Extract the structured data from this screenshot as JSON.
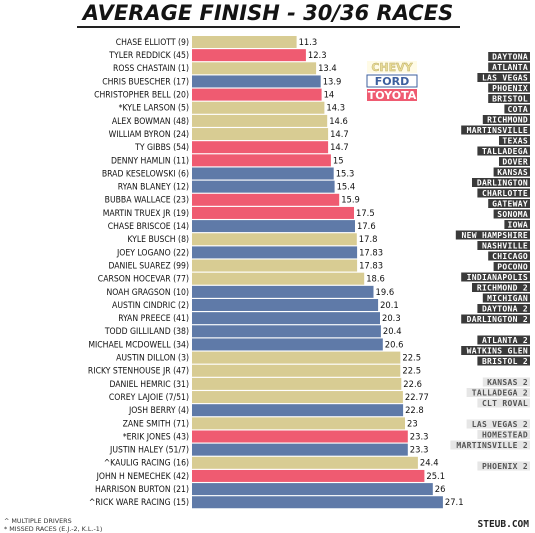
{
  "chart_data": {
    "type": "bar",
    "orientation": "horizontal",
    "title": "AVERAGE FINISH - 30/36 RACES",
    "xlim": [
      0,
      28
    ],
    "colors": {
      "Chevy": "#d8cc93",
      "Ford": "#5f7aa8",
      "Toyota": "#ef5b71"
    },
    "legend": [
      {
        "label": "CHEVY",
        "make": "Chevy"
      },
      {
        "label": "FORD",
        "make": "Ford"
      },
      {
        "label": "TOYOTA",
        "make": "Toyota"
      }
    ],
    "legend_position": "top-right",
    "bars": [
      {
        "driver": "CHASE ELLIOTT (9)",
        "value": 11.3,
        "label": "11.3",
        "make": "Chevy"
      },
      {
        "driver": "TYLER REDDICK (45)",
        "value": 12.3,
        "label": "12.3",
        "make": "Toyota"
      },
      {
        "driver": "ROSS CHASTAIN (1)",
        "value": 13.4,
        "label": "13.4",
        "make": "Chevy"
      },
      {
        "driver": "CHRIS BUESCHER (17)",
        "value": 13.9,
        "label": "13.9",
        "make": "Ford"
      },
      {
        "driver": "CHRISTOPHER BELL (20)",
        "value": 14,
        "label": "14",
        "make": "Toyota"
      },
      {
        "driver": "*KYLE LARSON (5)",
        "value": 14.3,
        "label": "14.3",
        "make": "Chevy"
      },
      {
        "driver": "ALEX BOWMAN (48)",
        "value": 14.6,
        "label": "14.6",
        "make": "Chevy"
      },
      {
        "driver": "WILLIAM BYRON (24)",
        "value": 14.7,
        "label": "14.7",
        "make": "Chevy"
      },
      {
        "driver": "TY GIBBS (54)",
        "value": 14.7,
        "label": "14.7",
        "make": "Toyota"
      },
      {
        "driver": "DENNY HAMLIN (11)",
        "value": 15,
        "label": "15",
        "make": "Toyota"
      },
      {
        "driver": "BRAD KESELOWSKI (6)",
        "value": 15.3,
        "label": "15.3",
        "make": "Ford"
      },
      {
        "driver": "RYAN BLANEY (12)",
        "value": 15.4,
        "label": "15.4",
        "make": "Ford"
      },
      {
        "driver": "BUBBA WALLACE (23)",
        "value": 15.9,
        "label": "15.9",
        "make": "Toyota"
      },
      {
        "driver": "MARTIN TRUEX JR (19)",
        "value": 17.5,
        "label": "17.5",
        "make": "Toyota"
      },
      {
        "driver": "CHASE BRISCOE (14)",
        "value": 17.6,
        "label": "17.6",
        "make": "Ford"
      },
      {
        "driver": "KYLE BUSCH (8)",
        "value": 17.8,
        "label": "17.8",
        "make": "Chevy"
      },
      {
        "driver": "JOEY LOGANO (22)",
        "value": 17.83,
        "label": "17.83",
        "make": "Ford"
      },
      {
        "driver": "DANIEL SUAREZ (99)",
        "value": 17.83,
        "label": "17.83",
        "make": "Chevy"
      },
      {
        "driver": "CARSON HOCEVAR (77)",
        "value": 18.6,
        "label": "18.6",
        "make": "Chevy"
      },
      {
        "driver": "NOAH GRAGSON (10)",
        "value": 19.6,
        "label": "19.6",
        "make": "Ford"
      },
      {
        "driver": "AUSTIN CINDRIC (2)",
        "value": 20.1,
        "label": "20.1",
        "make": "Ford"
      },
      {
        "driver": "RYAN PREECE (41)",
        "value": 20.3,
        "label": "20.3",
        "make": "Ford"
      },
      {
        "driver": "TODD GILLILAND (38)",
        "value": 20.4,
        "label": "20.4",
        "make": "Ford"
      },
      {
        "driver": "MICHAEL MCDOWELL (34)",
        "value": 20.6,
        "label": "20.6",
        "make": "Ford"
      },
      {
        "driver": "AUSTIN DILLON (3)",
        "value": 22.5,
        "label": "22.5",
        "make": "Chevy"
      },
      {
        "driver": "RICKY STENHOUSE JR (47)",
        "value": 22.5,
        "label": "22.5",
        "make": "Chevy"
      },
      {
        "driver": "DANIEL HEMRIC (31)",
        "value": 22.6,
        "label": "22.6",
        "make": "Chevy"
      },
      {
        "driver": "COREY LAJOIE (7/51)",
        "value": 22.77,
        "label": "22.77",
        "make": "Chevy"
      },
      {
        "driver": "JOSH BERRY (4)",
        "value": 22.8,
        "label": "22.8",
        "make": "Ford"
      },
      {
        "driver": "ZANE SMITH (71)",
        "value": 23,
        "label": "23",
        "make": "Chevy"
      },
      {
        "driver": "*ERIK JONES (43)",
        "value": 23.3,
        "label": "23.3",
        "make": "Toyota"
      },
      {
        "driver": "JUSTIN HALEY (51/7)",
        "value": 23.3,
        "label": "23.3",
        "make": "Ford"
      },
      {
        "driver": "^KAULIG RACING (16)",
        "value": 24.4,
        "label": "24.4",
        "make": "Chevy"
      },
      {
        "driver": "JOHN H NEMECHEK (42)",
        "value": 25.1,
        "label": "25.1",
        "make": "Toyota"
      },
      {
        "driver": "HARRISON BURTON (21)",
        "value": 26,
        "label": "26",
        "make": "Ford"
      },
      {
        "driver": "^RICK WARE RACING (15)",
        "value": 27.1,
        "label": "27.1",
        "make": "Ford"
      }
    ],
    "tracks": [
      {
        "name": "DAYTONA",
        "style": "dark"
      },
      {
        "name": "ATLANTA",
        "style": "dark"
      },
      {
        "name": "LAS VEGAS",
        "style": "dark"
      },
      {
        "name": "PHOENIX",
        "style": "dark"
      },
      {
        "name": "BRISTOL",
        "style": "dark"
      },
      {
        "name": "COTA",
        "style": "dark"
      },
      {
        "name": "RICHMOND",
        "style": "dark"
      },
      {
        "name": "MARTINSVILLE",
        "style": "dark"
      },
      {
        "name": "TEXAS",
        "style": "dark"
      },
      {
        "name": "TALLADEGA",
        "style": "dark"
      },
      {
        "name": "DOVER",
        "style": "dark"
      },
      {
        "name": "KANSAS",
        "style": "dark"
      },
      {
        "name": "DARLINGTON",
        "style": "dark"
      },
      {
        "name": "CHARLOTTE",
        "style": "dark"
      },
      {
        "name": "GATEWAY",
        "style": "dark"
      },
      {
        "name": "SONOMA",
        "style": "dark"
      },
      {
        "name": "IOWA",
        "style": "dark"
      },
      {
        "name": "NEW HAMPSHIRE",
        "style": "dark"
      },
      {
        "name": "NASHVILLE",
        "style": "dark"
      },
      {
        "name": "CHICAGO",
        "style": "dark"
      },
      {
        "name": "POCONO",
        "style": "dark"
      },
      {
        "name": "INDIANAPOLIS",
        "style": "dark"
      },
      {
        "name": "RICHMOND 2",
        "style": "dark"
      },
      {
        "name": "MICHIGAN",
        "style": "dark"
      },
      {
        "name": "DAYTONA 2",
        "style": "dark"
      },
      {
        "name": "DARLINGTON 2",
        "style": "dark"
      },
      {
        "name": "",
        "style": "gap"
      },
      {
        "name": "ATLANTA 2",
        "style": "dark"
      },
      {
        "name": "WATKINS GLEN",
        "style": "dark"
      },
      {
        "name": "BRISTOL 2",
        "style": "dark"
      },
      {
        "name": "",
        "style": "gap"
      },
      {
        "name": "KANSAS 2",
        "style": "light"
      },
      {
        "name": "TALLADEGA 2",
        "style": "light"
      },
      {
        "name": "CLT ROVAL",
        "style": "light"
      },
      {
        "name": "",
        "style": "gap"
      },
      {
        "name": "LAS VEGAS 2",
        "style": "light"
      },
      {
        "name": "HOMESTEAD",
        "style": "light"
      },
      {
        "name": "MARTINSVILLE 2",
        "style": "light"
      },
      {
        "name": "",
        "style": "gap"
      },
      {
        "name": "PHOENIX 2",
        "style": "light"
      }
    ],
    "footnotes": [
      "^ MULTIPLE DRIVERS",
      "* MISSED RACES (E.J.-2, K.L.-1)"
    ],
    "credit": "STEUB.COM"
  }
}
